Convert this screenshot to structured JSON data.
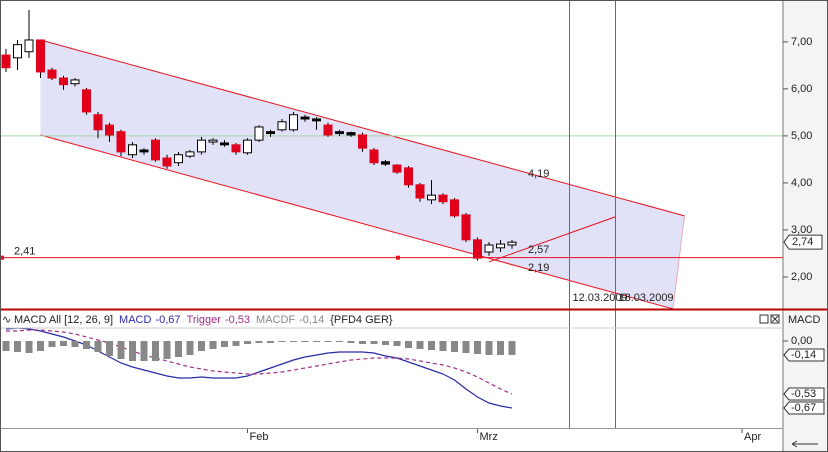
{
  "chart_data": {
    "type": "candlestick",
    "categories": [
      null,
      null,
      null,
      null,
      null,
      null,
      null,
      null,
      null,
      null,
      null,
      null,
      null,
      null,
      null,
      null,
      null,
      null,
      null,
      null,
      null,
      "Feb",
      null,
      null,
      null,
      null,
      null,
      null,
      null,
      null,
      null,
      null,
      null,
      null,
      null,
      null,
      null,
      null,
      null,
      null,
      null,
      "Mrz",
      null,
      null,
      null,
      null,
      null,
      null,
      null,
      null,
      null,
      null,
      null,
      null,
      null,
      null,
      null,
      null,
      null,
      null,
      null,
      null,
      null,
      null,
      "Apr"
    ],
    "open": [
      6.72,
      6.66,
      6.79,
      7.04,
      6.4,
      6.23,
      6.11,
      5.98,
      5.45,
      5.23,
      5.09,
      4.6,
      4.7,
      4.91,
      4.53,
      4.43,
      4.57,
      4.66,
      4.87,
      4.85,
      4.81,
      4.64,
      4.91,
      5.09,
      5.13,
      5.13,
      5.4,
      5.36,
      5.23,
      5.09,
      5.07,
      5.02,
      4.7,
      4.45,
      4.38,
      4.32,
      3.96,
      3.64,
      3.74,
      3.64,
      3.32,
      2.79,
      2.53,
      2.62,
      2.68,
      null,
      null,
      null,
      null,
      null,
      null,
      null,
      null,
      null,
      null,
      null,
      null,
      null,
      null,
      null,
      null,
      null,
      null,
      null,
      null
    ],
    "high": [
      6.85,
      7.04,
      7.68,
      7.04,
      6.45,
      6.28,
      6.23,
      6.02,
      5.51,
      5.28,
      5.13,
      4.87,
      4.74,
      4.95,
      4.6,
      4.66,
      4.7,
      4.98,
      4.95,
      4.91,
      4.85,
      4.95,
      5.23,
      5.13,
      5.36,
      5.51,
      5.45,
      5.4,
      5.28,
      5.13,
      5.09,
      5.07,
      4.74,
      4.49,
      4.4,
      4.36,
      4.0,
      4.06,
      3.78,
      3.68,
      3.36,
      2.84,
      2.74,
      2.79,
      2.79,
      null,
      null,
      null,
      null,
      null,
      null,
      null,
      null,
      null,
      null,
      null,
      null,
      null,
      null,
      null,
      null,
      null,
      null,
      null,
      null
    ],
    "low": [
      6.36,
      6.4,
      6.66,
      6.23,
      6.19,
      5.98,
      6.05,
      5.45,
      4.95,
      4.87,
      4.57,
      4.53,
      4.6,
      4.45,
      4.3,
      4.36,
      4.53,
      4.6,
      4.81,
      4.77,
      4.6,
      4.6,
      4.87,
      4.98,
      5.09,
      5.09,
      5.3,
      5.13,
      4.98,
      5.0,
      4.98,
      4.66,
      4.38,
      4.36,
      4.19,
      3.9,
      3.6,
      3.55,
      3.55,
      3.26,
      2.74,
      2.35,
      2.45,
      2.53,
      2.6,
      null,
      null,
      null,
      null,
      null,
      null,
      null,
      null,
      null,
      null,
      null,
      null,
      null,
      null,
      null,
      null,
      null,
      null,
      null,
      null
    ],
    "close": [
      6.45,
      6.94,
      7.04,
      6.36,
      6.23,
      6.09,
      6.19,
      5.51,
      5.13,
      5.02,
      4.66,
      4.81,
      4.66,
      4.49,
      4.36,
      4.6,
      4.66,
      4.91,
      4.91,
      4.81,
      4.66,
      4.91,
      5.19,
      5.05,
      5.3,
      5.45,
      5.36,
      5.32,
      5.02,
      5.05,
      5.02,
      4.74,
      4.43,
      4.4,
      4.23,
      3.96,
      3.68,
      3.74,
      3.6,
      3.3,
      2.79,
      2.4,
      2.68,
      2.7,
      2.74,
      null,
      null,
      null,
      null,
      null,
      null,
      null,
      null,
      null,
      null,
      null,
      null,
      null,
      null,
      null,
      null,
      null,
      null,
      null,
      null
    ],
    "colors": {
      "up": "#ffffff",
      "down": "#e0001b",
      "flat": "#000000"
    },
    "ylim": [
      1.34,
      7.89
    ],
    "yticks": [
      {
        "value": 2,
        "label": "2,00"
      },
      {
        "value": 3,
        "label": "3,00"
      },
      {
        "value": 4,
        "label": "4,00"
      },
      {
        "value": 5,
        "label": "5,00"
      },
      {
        "value": 6,
        "label": "6,00"
      },
      {
        "value": 7,
        "label": "7,00"
      }
    ],
    "last_price": {
      "value": 2.74,
      "label": "2,74"
    },
    "channel": {
      "color": "#e8101c",
      "fill": "#dcdcf6",
      "upper": [
        [
          3,
          7.04
        ],
        [
          59,
          3.3
        ]
      ],
      "lower": [
        [
          3,
          5.02
        ],
        [
          58,
          1.32
        ]
      ],
      "label": {
        "value": 4.19,
        "label": "4,19"
      }
    },
    "hlines": [
      {
        "value": 2.41,
        "label": "2,41",
        "color": "#e8101c"
      },
      {
        "value": 5,
        "color": "#a6d6a6"
      }
    ],
    "trend_line": {
      "color": "#e8101c",
      "points": [
        [
          42,
          2.32
        ],
        [
          53,
          3.28
        ]
      ]
    },
    "annotations": [
      {
        "value": 2.57,
        "label": "2,57"
      },
      {
        "value": 2.19,
        "label": "2,19"
      }
    ],
    "vlines": [
      {
        "x": 49,
        "label": "12.03.2009"
      },
      {
        "x": 53,
        "label": "18.03.2009"
      }
    ],
    "indicator": {
      "title": "MACD All [12, 26, 9]",
      "source": "{PFD4 GER}",
      "axis_label": "MACD",
      "ylim": [
        -0.87,
        0.13
      ],
      "yticks": [
        {
          "value": 0,
          "label": "0,00"
        }
      ],
      "series": [
        {
          "name": "MACD",
          "color": "#2a2aa8",
          "style": "line",
          "last": {
            "value": -0.67,
            "label": "-0,67"
          },
          "values": [
            0.12,
            0.13,
            0.12,
            0.1,
            0.07,
            0.04,
            0.0,
            -0.04,
            -0.1,
            -0.16,
            -0.22,
            -0.26,
            -0.29,
            -0.32,
            -0.35,
            -0.37,
            -0.37,
            -0.36,
            -0.37,
            -0.37,
            -0.37,
            -0.35,
            -0.31,
            -0.27,
            -0.23,
            -0.19,
            -0.16,
            -0.14,
            -0.12,
            -0.11,
            -0.11,
            -0.11,
            -0.12,
            -0.15,
            -0.17,
            -0.21,
            -0.25,
            -0.29,
            -0.33,
            -0.39,
            -0.48,
            -0.56,
            -0.62,
            -0.65,
            -0.67,
            null,
            null,
            null,
            null,
            null,
            null,
            null,
            null,
            null,
            null,
            null,
            null,
            null,
            null,
            null,
            null,
            null,
            null,
            null,
            null
          ]
        },
        {
          "name": "Trigger",
          "color": "#a0308a",
          "style": "dashed",
          "last": {
            "value": -0.53,
            "label": "-0,53"
          },
          "values": [
            0.1,
            0.1,
            0.11,
            0.11,
            0.1,
            0.09,
            0.07,
            0.04,
            0.01,
            -0.02,
            -0.06,
            -0.1,
            -0.14,
            -0.17,
            -0.2,
            -0.23,
            -0.26,
            -0.28,
            -0.3,
            -0.31,
            -0.32,
            -0.33,
            -0.33,
            -0.32,
            -0.31,
            -0.29,
            -0.27,
            -0.25,
            -0.23,
            -0.21,
            -0.19,
            -0.18,
            -0.17,
            -0.17,
            -0.17,
            -0.18,
            -0.2,
            -0.22,
            -0.24,
            -0.27,
            -0.31,
            -0.36,
            -0.42,
            -0.48,
            -0.53,
            null,
            null,
            null,
            null,
            null,
            null,
            null,
            null,
            null,
            null,
            null,
            null,
            null,
            null,
            null,
            null,
            null,
            null,
            null,
            null
          ]
        },
        {
          "name": "MACDF",
          "color": "#888888",
          "style": "histogram",
          "last": {
            "value": -0.14,
            "label": "-0,14"
          },
          "values": [
            -0.1,
            -0.11,
            -0.12,
            -0.1,
            -0.06,
            -0.05,
            -0.06,
            -0.08,
            -0.11,
            -0.15,
            -0.18,
            -0.2,
            -0.2,
            -0.2,
            -0.18,
            -0.16,
            -0.14,
            -0.1,
            -0.08,
            -0.06,
            -0.05,
            -0.03,
            -0.02,
            -0.02,
            -0.01,
            -0.01,
            -0.01,
            -0.01,
            -0.01,
            -0.01,
            -0.02,
            -0.03,
            -0.03,
            -0.04,
            -0.05,
            -0.07,
            -0.08,
            -0.09,
            -0.1,
            -0.11,
            -0.12,
            -0.13,
            -0.14,
            -0.14,
            -0.14,
            null,
            null,
            null,
            null,
            null,
            null,
            null,
            null,
            null,
            null,
            null,
            null,
            null,
            null,
            null,
            null,
            null,
            null,
            null,
            null
          ]
        }
      ]
    }
  }
}
